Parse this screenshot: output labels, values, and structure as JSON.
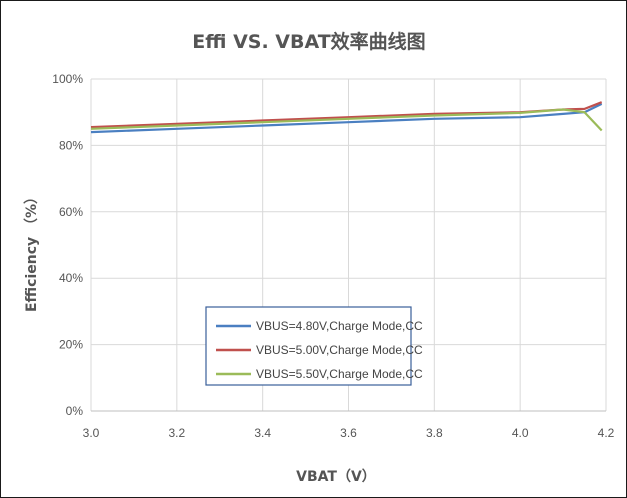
{
  "chart_data": {
    "type": "line",
    "title": "Effi VS. VBAT效率曲线图",
    "xlabel": "VBAT（V）",
    "ylabel": "Efficiency （%）",
    "xlim": [
      3.0,
      4.2
    ],
    "ylim": [
      0,
      100
    ],
    "x_ticks": [
      "3.0",
      "3.2",
      "3.4",
      "3.6",
      "3.8",
      "4.0",
      "4.2"
    ],
    "y_ticks": [
      "0%",
      "20%",
      "40%",
      "60%",
      "80%",
      "100%"
    ],
    "grid": true,
    "legend_position": "bottom-center",
    "series": [
      {
        "name": "VBUS=4.80V,Charge Mode,CC",
        "color": "#4a7fc1",
        "x": [
          3.0,
          3.2,
          3.4,
          3.6,
          3.8,
          4.0,
          4.1,
          4.15,
          4.19
        ],
        "y": [
          84.0,
          85.0,
          86.0,
          87.0,
          88.0,
          88.5,
          89.5,
          90.0,
          92.5
        ]
      },
      {
        "name": "VBUS=5.00V,Charge Mode,CC",
        "color": "#c0504d",
        "x": [
          3.0,
          3.2,
          3.4,
          3.6,
          3.8,
          4.0,
          4.1,
          4.15,
          4.19
        ],
        "y": [
          85.5,
          86.5,
          87.5,
          88.5,
          89.5,
          90.0,
          90.8,
          91.0,
          93.0
        ]
      },
      {
        "name": "VBUS=5.50V,Charge Mode,CC",
        "color": "#9bbb59",
        "x": [
          3.0,
          3.2,
          3.4,
          3.6,
          3.8,
          4.0,
          4.1,
          4.15,
          4.19
        ],
        "y": [
          85.0,
          86.0,
          87.0,
          88.0,
          89.0,
          89.8,
          90.8,
          90.0,
          84.5
        ]
      }
    ]
  }
}
